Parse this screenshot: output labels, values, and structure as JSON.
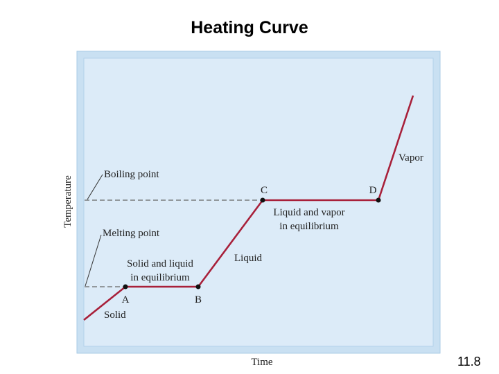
{
  "slide": {
    "title": "Heating Curve",
    "page_number": "11.8"
  },
  "axes": {
    "y_label": "Temperature",
    "x_label": "Time"
  },
  "annotations": {
    "boiling_point": "Boiling point",
    "melting_point": "Melting point",
    "solid_liquid_line1": "Solid and liquid",
    "solid_liquid_line2": "in equilibrium",
    "liquid_vapor_line1": "Liquid and vapor",
    "liquid_vapor_line2": "in equilibrium",
    "solid": "Solid",
    "liquid": "Liquid",
    "vapor": "Vapor"
  },
  "points": {
    "a": "A",
    "b": "B",
    "c": "C",
    "d": "D"
  },
  "colors": {
    "panel_outer": "#c9e0f2",
    "panel_border": "#a9cbe6",
    "panel_inner": "#dcebf8",
    "curve": "#a8203a",
    "point": "#111111",
    "guide": "#666666"
  }
}
